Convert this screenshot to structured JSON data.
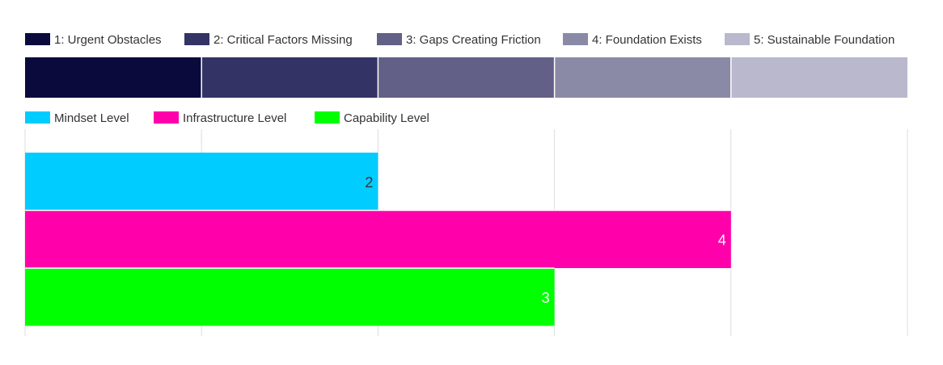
{
  "chart_data": {
    "type": "bar",
    "orientation": "horizontal",
    "title": "",
    "xlabel": "",
    "ylabel": "",
    "xlim": [
      0,
      5
    ],
    "grid": true,
    "scale_legend": [
      {
        "label": "1: Urgent Obstacles",
        "color": "#0a0a3c"
      },
      {
        "label": "2: Critical Factors Missing",
        "color": "#333366"
      },
      {
        "label": "3: Gaps Creating Friction",
        "color": "#626086"
      },
      {
        "label": "4: Foundation Exists",
        "color": "#8b8aa6"
      },
      {
        "label": "5: Sustainable Foundation",
        "color": "#bab8cc"
      }
    ],
    "series": [
      {
        "name": "Mindset Level",
        "value": 2,
        "color": "#00ccff"
      },
      {
        "name": "Infrastructure Level",
        "value": 4,
        "color": "#ff00aa"
      },
      {
        "name": "Capability Level",
        "value": 3,
        "color": "#00ff00"
      }
    ],
    "colors": {
      "grid": "#dddddd",
      "label_on_cyan": "#333333",
      "label_on_dark": "#ffffff"
    }
  }
}
